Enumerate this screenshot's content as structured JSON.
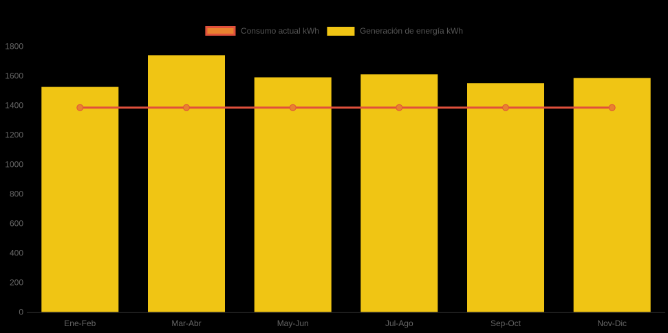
{
  "theme": {
    "background": "#000000",
    "bar_color": "#F0C514",
    "line_color": "#E0503C",
    "marker_color": "#E8822F",
    "axis_label_color": "#666666",
    "legend_text_color": "#555555",
    "axis_line_color": "#333333"
  },
  "legend": {
    "items": [
      {
        "label": "Consumo actual kWh",
        "type": "line",
        "swatch_fill": "#E8822F",
        "swatch_border": "#E0503C"
      },
      {
        "label": "Generación de energía kWh",
        "type": "bar",
        "swatch_fill": "#F0C514",
        "swatch_border": "#F0C514"
      }
    ]
  },
  "chart_data": {
    "type": "combo",
    "title": "",
    "xlabel": "",
    "ylabel": "",
    "categories": [
      "Ene-Feb",
      "Mar-Abr",
      "May-Jun",
      "Jul-Ago",
      "Sep-Oct",
      "Nov-Dic"
    ],
    "series": [
      {
        "name": "Consumo actual kWh",
        "type": "line",
        "color": "#E0503C",
        "marker_color": "#E8822F",
        "values": [
          1385,
          1385,
          1385,
          1385,
          1385,
          1385
        ]
      },
      {
        "name": "Generación de energía kWh",
        "type": "bar",
        "color": "#F0C514",
        "values": [
          1525,
          1740,
          1590,
          1610,
          1550,
          1585
        ]
      }
    ],
    "ylim": [
      0,
      1800
    ],
    "ytick_interval": 200,
    "y_ticks": [
      0,
      200,
      400,
      600,
      800,
      1000,
      1200,
      1400,
      1600,
      1800
    ],
    "grid": false,
    "legend_position": "top-center"
  }
}
